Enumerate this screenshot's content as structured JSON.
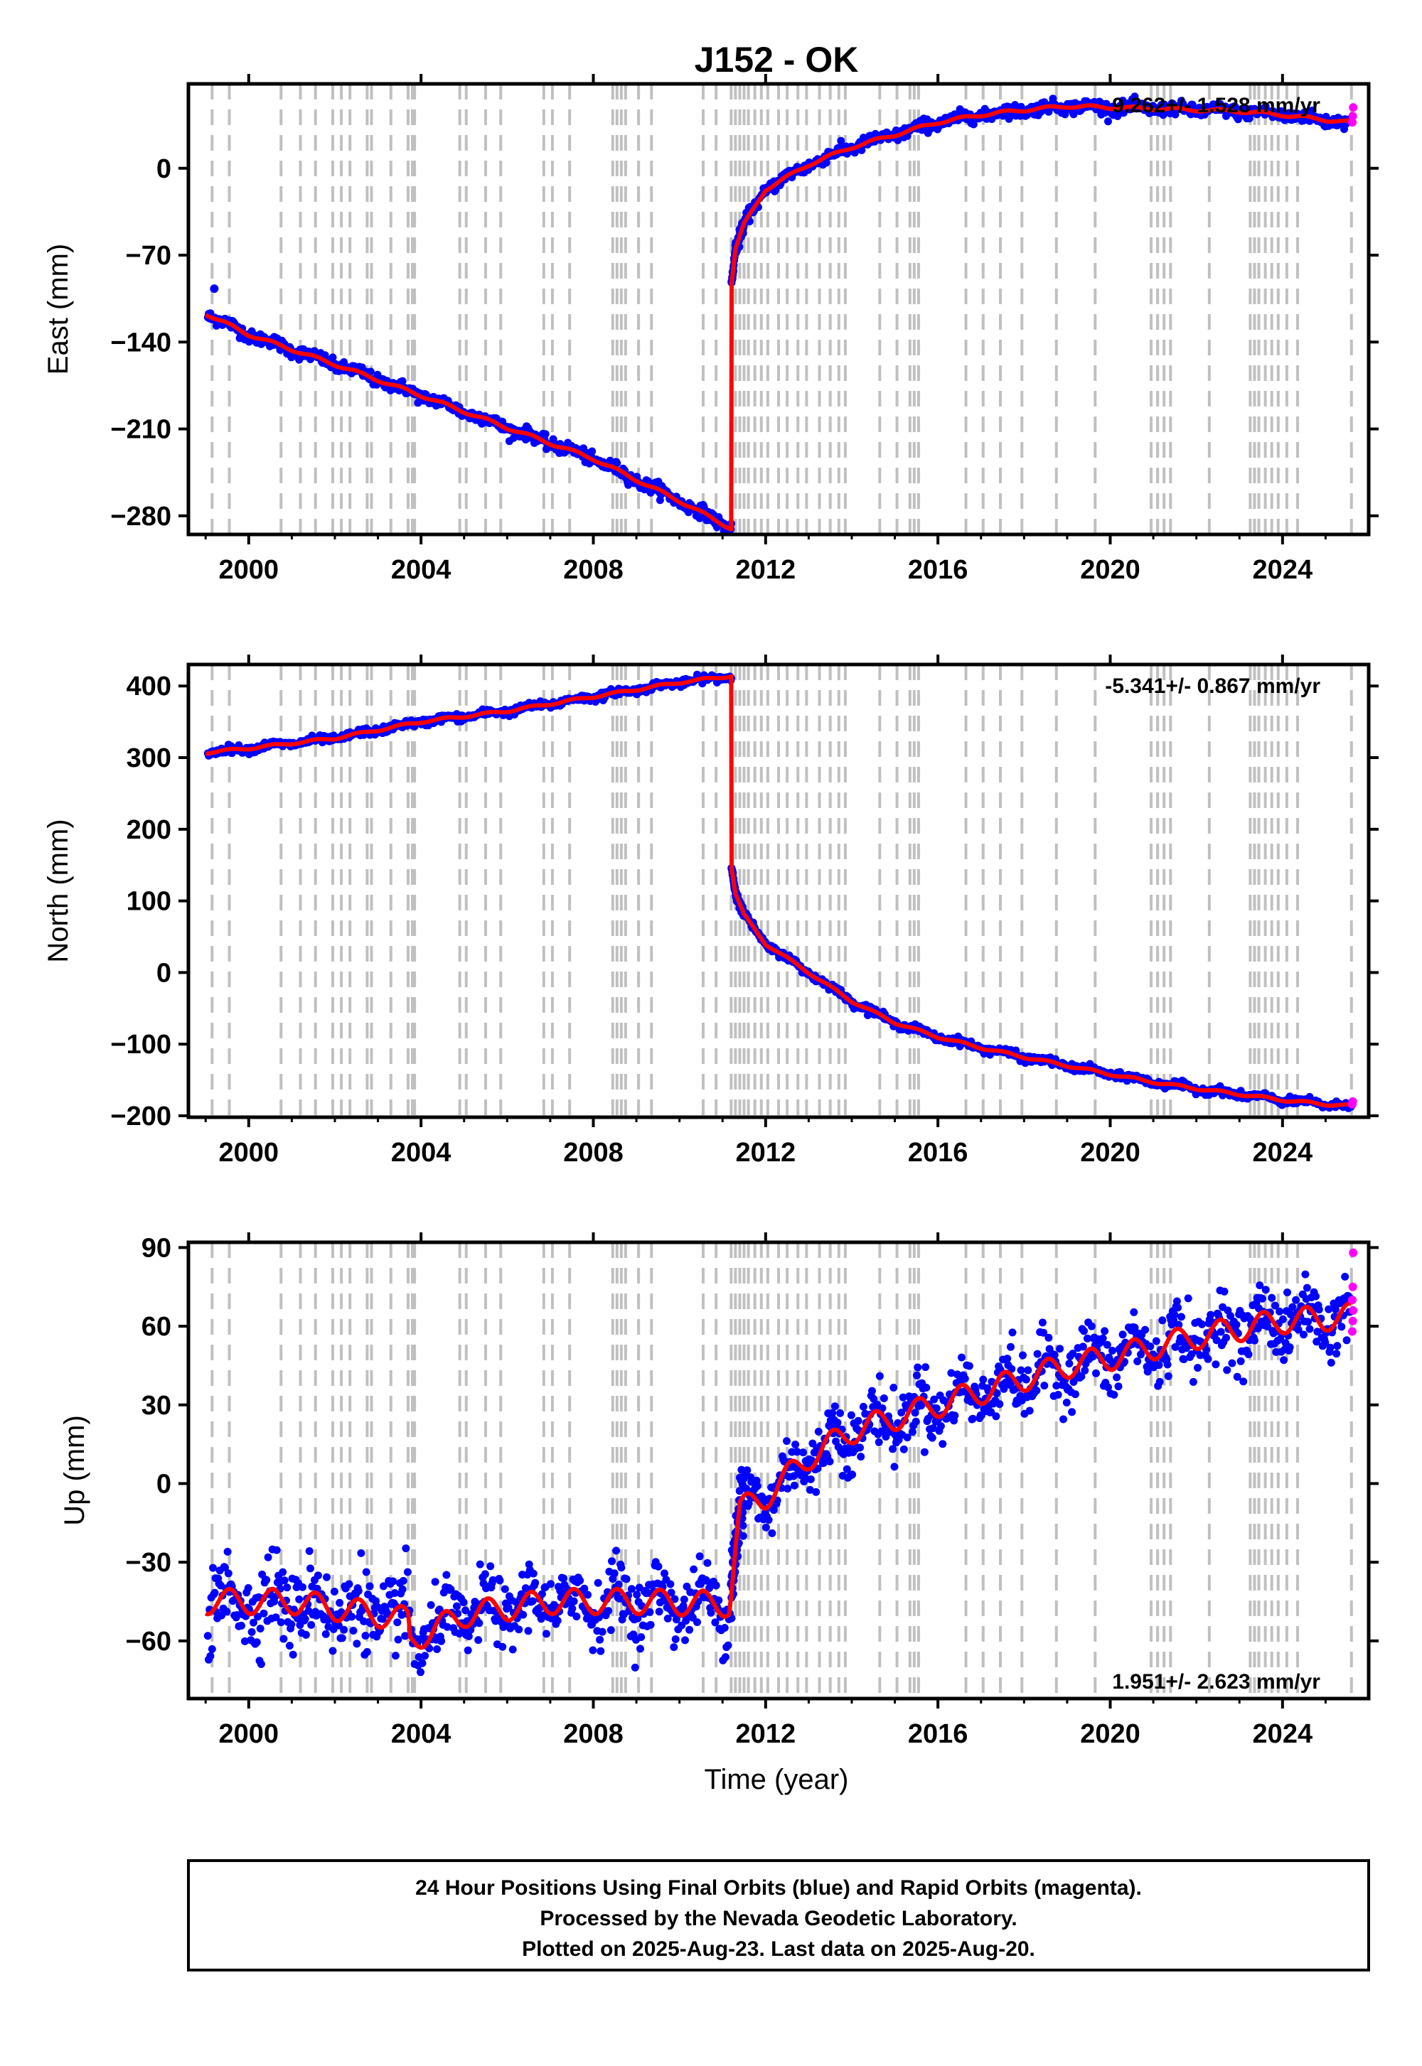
{
  "title": "J152 - OK",
  "colors": {
    "final_orbits": "#0000ff",
    "rapid_orbits": "#ff00ff",
    "model": "#ff0000",
    "event_lines": "#c0c0c0",
    "frame": "#000000"
  },
  "footer": {
    "lines": [
      "24 Hour Positions Using Final Orbits (blue) and Rapid Orbits (magenta).",
      "Processed by the Nevada Geodetic Laboratory.",
      "Plotted on 2025-Aug-23. Last data on 2025-Aug-20."
    ]
  },
  "chart_data": [
    {
      "type": "scatter",
      "panel": "east",
      "ylabel": "East (mm)",
      "xlabel": "",
      "xlim": [
        1998.6,
        2026.0
      ],
      "ylim": [
        -295,
        68
      ],
      "x_ticks": [
        2000,
        2004,
        2008,
        2012,
        2016,
        2020,
        2024
      ],
      "y_ticks": [
        0,
        -70,
        -140,
        -210,
        -280
      ],
      "rate_label": "9.262+/- 1.528 mm/yr",
      "rate_label_position": "top-right",
      "model_knots": [
        [
          1999.0,
          -117
        ],
        [
          2000.0,
          -134
        ],
        [
          2002.0,
          -158
        ],
        [
          2004.0,
          -183
        ],
        [
          2006.0,
          -209
        ],
        [
          2008.0,
          -234
        ],
        [
          2010.0,
          -268
        ],
        [
          2011.19,
          -290
        ],
        [
          2011.2,
          -290
        ],
        [
          2011.2,
          -95
        ],
        [
          2011.3,
          -65
        ],
        [
          2011.5,
          -45
        ],
        [
          2012.0,
          -17
        ],
        [
          2013.0,
          3
        ],
        [
          2014.0,
          17
        ],
        [
          2015.0,
          27
        ],
        [
          2016.0,
          37
        ],
        [
          2017.0,
          43
        ],
        [
          2018.0,
          47
        ],
        [
          2019.0,
          50
        ],
        [
          2020.0,
          49
        ],
        [
          2021.0,
          48
        ],
        [
          2022.0,
          47
        ],
        [
          2023.0,
          46
        ],
        [
          2024.0,
          43
        ],
        [
          2025.0,
          39
        ],
        [
          2025.6,
          37
        ]
      ],
      "outlier_points": [
        [
          1999.2,
          -97
        ]
      ],
      "rapid_points": [
        [
          2025.62,
          37
        ],
        [
          2025.63,
          42
        ],
        [
          2025.64,
          49
        ]
      ],
      "seasonal_amplitude": 1.5,
      "scatter_noise": 2.5
    },
    {
      "type": "scatter",
      "panel": "north",
      "ylabel": "North (mm)",
      "xlabel": "",
      "xlim": [
        1998.6,
        2026.0
      ],
      "ylim": [
        -202,
        430
      ],
      "x_ticks": [
        2000,
        2004,
        2008,
        2012,
        2016,
        2020,
        2024
      ],
      "y_ticks": [
        400,
        300,
        200,
        100,
        0,
        -100,
        -200
      ],
      "rate_label": "-5.341+/- 0.867 mm/yr",
      "rate_label_position": "top-right",
      "model_knots": [
        [
          1999.0,
          307
        ],
        [
          2000.0,
          313
        ],
        [
          2002.0,
          327
        ],
        [
          2004.0,
          350
        ],
        [
          2006.0,
          365
        ],
        [
          2008.0,
          385
        ],
        [
          2010.0,
          405
        ],
        [
          2011.19,
          414
        ],
        [
          2011.2,
          414
        ],
        [
          2011.2,
          150
        ],
        [
          2011.3,
          110
        ],
        [
          2011.5,
          80
        ],
        [
          2012.0,
          40
        ],
        [
          2013.0,
          0
        ],
        [
          2014.0,
          -40
        ],
        [
          2015.0,
          -70
        ],
        [
          2016.0,
          -90
        ],
        [
          2017.0,
          -105
        ],
        [
          2018.0,
          -118
        ],
        [
          2019.0,
          -130
        ],
        [
          2020.0,
          -142
        ],
        [
          2021.0,
          -153
        ],
        [
          2022.0,
          -162
        ],
        [
          2023.0,
          -170
        ],
        [
          2024.0,
          -178
        ],
        [
          2025.0,
          -184
        ],
        [
          2025.6,
          -186
        ]
      ],
      "outlier_points": [],
      "rapid_points": [
        [
          2025.62,
          -184
        ],
        [
          2025.63,
          -180
        ]
      ],
      "seasonal_amplitude": 2,
      "scatter_noise": 2.5
    },
    {
      "type": "scatter",
      "panel": "up",
      "ylabel": "Up (mm)",
      "xlabel": "Time (year)",
      "xlim": [
        1998.6,
        2026.0
      ],
      "ylim": [
        -82,
        92
      ],
      "x_ticks": [
        2000,
        2004,
        2008,
        2012,
        2016,
        2020,
        2024
      ],
      "y_ticks": [
        90,
        60,
        30,
        0,
        -30,
        -60
      ],
      "rate_label": "1.951+/- 2.623 mm/yr",
      "rate_label_position": "bottom-right",
      "model_knots": [
        [
          1999.0,
          -45
        ],
        [
          2001.0,
          -45
        ],
        [
          2003.0,
          -50
        ],
        [
          2003.7,
          -52
        ],
        [
          2003.75,
          -60
        ],
        [
          2005.0,
          -50
        ],
        [
          2007.0,
          -45
        ],
        [
          2009.0,
          -45
        ],
        [
          2011.15,
          -46
        ],
        [
          2011.2,
          -40
        ],
        [
          2011.4,
          -10
        ],
        [
          2012.0,
          -5
        ],
        [
          2013.0,
          10
        ],
        [
          2014.0,
          20
        ],
        [
          2015.0,
          25
        ],
        [
          2016.0,
          30
        ],
        [
          2017.0,
          35
        ],
        [
          2018.0,
          40
        ],
        [
          2019.0,
          45
        ],
        [
          2020.0,
          48
        ],
        [
          2021.0,
          52
        ],
        [
          2022.0,
          56
        ],
        [
          2023.0,
          59
        ],
        [
          2024.0,
          62
        ],
        [
          2025.0,
          63
        ],
        [
          2025.6,
          64
        ]
      ],
      "outlier_points": [],
      "rapid_points": [
        [
          2025.62,
          58
        ],
        [
          2025.63,
          62
        ],
        [
          2025.64,
          66
        ],
        [
          2025.62,
          70
        ],
        [
          2025.63,
          75
        ],
        [
          2025.64,
          88
        ]
      ],
      "seasonal_amplitude": 6,
      "scatter_noise": 6
    }
  ],
  "event_lines_x": [
    1999.15,
    1999.55,
    2000.75,
    2001.2,
    2001.55,
    2001.95,
    2002.15,
    2002.35,
    2002.75,
    2002.85,
    2003.3,
    2003.7,
    2003.8,
    2003.85,
    2004.9,
    2005.05,
    2005.5,
    2005.85,
    2006.85,
    2007.05,
    2007.45,
    2008.45,
    2008.55,
    2008.65,
    2008.75,
    2009.05,
    2009.35,
    2010.55,
    2010.85,
    2011.2,
    2011.3,
    2011.4,
    2011.5,
    2011.6,
    2011.75,
    2011.9,
    2012.05,
    2012.3,
    2012.5,
    2012.75,
    2012.95,
    2013.25,
    2013.5,
    2013.7,
    2013.85,
    2014.65,
    2015.05,
    2015.35,
    2015.45,
    2015.55,
    2016.65,
    2017.05,
    2017.45,
    2017.95,
    2018.75,
    2019.65,
    2020.95,
    2021.1,
    2021.25,
    2021.4,
    2022.3,
    2023.25,
    2023.35,
    2023.45,
    2023.6,
    2023.75,
    2023.9,
    2024.1,
    2024.35,
    2025.6
  ]
}
